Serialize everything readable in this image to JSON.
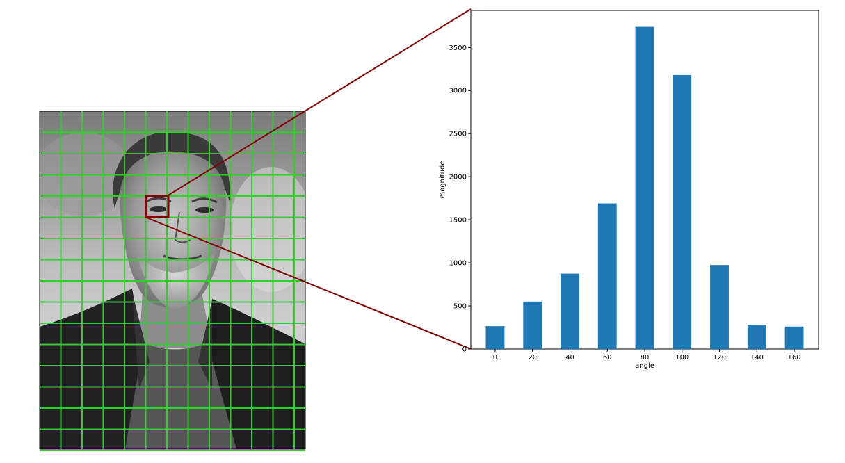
{
  "image_panel": {
    "grid": {
      "rows": 16,
      "cols": 12,
      "color": "#33cc33"
    },
    "highlight_cell": {
      "row": 4,
      "col": 5,
      "color": "#800000"
    }
  },
  "connector_color": "#800000",
  "chart_data": {
    "type": "bar",
    "categories": [
      "0",
      "20",
      "40",
      "60",
      "80",
      "100",
      "120",
      "140",
      "160"
    ],
    "values": [
      265,
      550,
      875,
      1690,
      3740,
      3180,
      975,
      280,
      260
    ],
    "title": "",
    "xlabel": "angle",
    "ylabel": "magnitude",
    "ylim": [
      0,
      3930
    ],
    "yticks": [
      0,
      500,
      1000,
      1500,
      2000,
      2500,
      3000,
      3500
    ],
    "bar_color": "#1f77b4",
    "grid": false
  }
}
